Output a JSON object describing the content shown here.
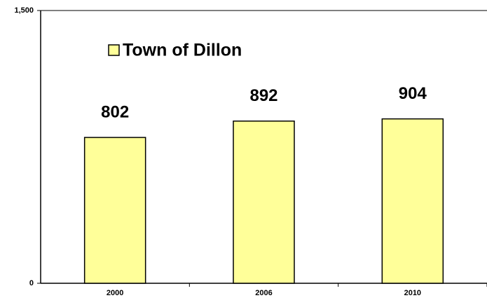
{
  "chart_data": {
    "type": "bar",
    "categories": [
      "2000",
      "2006",
      "2010"
    ],
    "series": [
      {
        "name": "Town of Dillon",
        "color": "#ffff99",
        "values": [
          802,
          892,
          904
        ]
      }
    ],
    "ylim": [
      0,
      1500
    ],
    "yticks": [
      0,
      {
        "value": 1500,
        "label": "1,500"
      }
    ],
    "legend": "top-left"
  }
}
